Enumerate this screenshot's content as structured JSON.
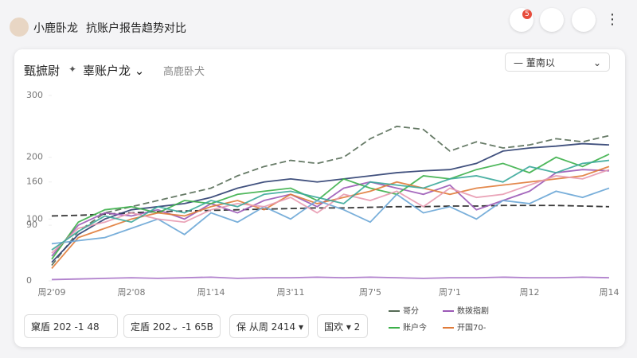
{
  "header": {
    "app_name": "小鹿卧龙",
    "page_title": "抗账户报告趋势对比",
    "badge": "5"
  },
  "card": {
    "title": "甄摭尉",
    "account": "辜账户龙",
    "subtitle": "高鹿卧犬",
    "dropdown": "董南以"
  },
  "chart_data": {
    "type": "line",
    "categories": [
      "周2'09",
      null,
      null,
      "周2'08",
      null,
      null,
      "周1'14",
      null,
      null,
      "周3'11",
      null,
      null,
      "周7'5",
      null,
      null,
      "周7'1",
      null,
      null,
      "周12",
      null,
      null,
      "周14"
    ],
    "ylim": [
      0,
      300
    ],
    "yticks": [
      0,
      90,
      100,
      160,
      200,
      300
    ],
    "series": [
      {
        "name": "哥分",
        "color": "#556b55",
        "dashed": true,
        "values": [
          25,
          80,
          110,
          120,
          130,
          140,
          150,
          170,
          185,
          195,
          190,
          200,
          230,
          250,
          245,
          210,
          225,
          215,
          220,
          230,
          225,
          235
        ]
      },
      {
        "color": "#222222",
        "dashed": true,
        "values": [
          105,
          106,
          108,
          110,
          112,
          113,
          114,
          115,
          116,
          117,
          118,
          118,
          119,
          120,
          120,
          121,
          121,
          122,
          122,
          122,
          121,
          120
        ]
      },
      {
        "color": "#2c3e70",
        "values": [
          30,
          75,
          100,
          115,
          120,
          125,
          135,
          150,
          160,
          165,
          160,
          165,
          170,
          175,
          178,
          180,
          190,
          210,
          215,
          218,
          222,
          220
        ]
      },
      {
        "color": "#a874c8",
        "values": [
          2,
          3,
          4,
          5,
          4,
          5,
          6,
          4,
          5,
          5,
          6,
          5,
          6,
          5,
          4,
          5,
          5,
          6,
          5,
          5,
          6,
          5
        ]
      },
      {
        "name": "数拨指剧",
        "color": "#9b59b6",
        "values": [
          40,
          90,
          110,
          105,
          115,
          100,
          125,
          110,
          130,
          140,
          120,
          150,
          160,
          150,
          140,
          155,
          115,
          130,
          145,
          175,
          180,
          178
        ]
      },
      {
        "name": "账户今",
        "color": "#3cb04a",
        "values": [
          35,
          95,
          115,
          120,
          110,
          130,
          125,
          140,
          145,
          150,
          130,
          165,
          150,
          140,
          170,
          165,
          180,
          190,
          175,
          200,
          185,
          205
        ]
      },
      {
        "name": "开国70-",
        "color": "#e07b39",
        "values": [
          20,
          70,
          85,
          100,
          110,
          105,
          120,
          130,
          115,
          140,
          125,
          135,
          145,
          160,
          150,
          140,
          150,
          155,
          160,
          165,
          170,
          185
        ]
      },
      {
        "color": "#6aa6d6",
        "values": [
          60,
          65,
          70,
          85,
          100,
          75,
          110,
          95,
          120,
          100,
          130,
          115,
          95,
          140,
          110,
          120,
          100,
          130,
          125,
          145,
          135,
          150
        ]
      },
      {
        "color": "#e89ab0",
        "values": [
          45,
          85,
          95,
          110,
          100,
          95,
          115,
          125,
          120,
          135,
          110,
          140,
          130,
          145,
          120,
          150,
          135,
          140,
          155,
          170,
          165,
          180
        ]
      },
      {
        "color": "#3aa99a",
        "values": [
          50,
          80,
          105,
          95,
          120,
          110,
          130,
          120,
          140,
          145,
          135,
          125,
          160,
          155,
          150,
          165,
          170,
          160,
          185,
          175,
          190,
          195
        ]
      }
    ]
  },
  "filters": [
    "窠盾 202 -1 48",
    "定盾 202⌄ -1 65B",
    "保 从周 2414 ▾",
    "国欢 ▾ 2"
  ]
}
